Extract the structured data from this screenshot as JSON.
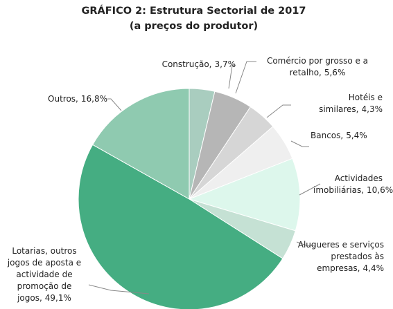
{
  "chart_data": {
    "type": "pie",
    "title": "GRÁFICO 2:  Estrutura Sectorial de 2017",
    "subtitle": "(a preços do produtor)",
    "categories": [
      "Construção,",
      "Comércio por grosso e a retalho,",
      "Hotéis e similares,",
      "Bancos,",
      "Actividades imobiliárias,",
      "Alugueres e serviços prestados às empresas,",
      "Lotarias, outros jogos de aposta e actividade de promoção de jogos,",
      "Outros,"
    ],
    "values": [
      3.7,
      5.6,
      4.3,
      5.4,
      10.6,
      4.4,
      49.1,
      16.8
    ],
    "value_labels": [
      "3,7%",
      "5,6%",
      "4,3%",
      "5,4%",
      "10,6%",
      "4,4%",
      "49,1%",
      "16,8%"
    ],
    "colors": [
      "#a9cdbf",
      "#b6b6b6",
      "#d6d6d6",
      "#efefef",
      "#ddf7ec",
      "#c5e1d4",
      "#45ad82",
      "#8fcab0"
    ]
  }
}
